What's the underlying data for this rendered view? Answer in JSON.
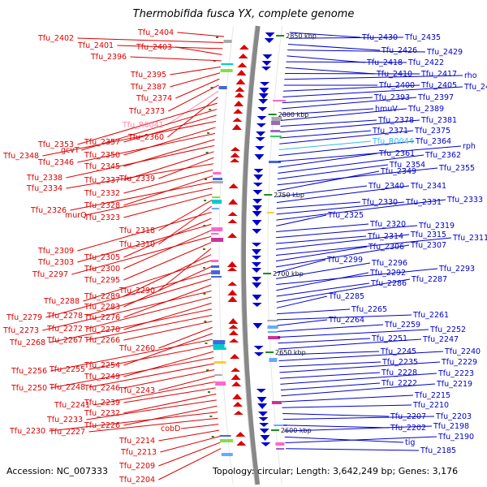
{
  "title": "Thermobifida fusca YX, complete genome",
  "accession": "Accession: NC_007333",
  "summary": "Topology: circular; Length: 3,642,249 bp; Genes: 3,176",
  "colors": {
    "left_genes": "#dd0000",
    "right_genes": "#0000cc",
    "rna_left": "#ff88aa",
    "rna_right": "#33bbee",
    "backbone": "#888888",
    "tick_marks": "#228822"
  },
  "ticks": [
    {
      "label": "2850 kbp"
    },
    {
      "label": "2800 kbp"
    },
    {
      "label": "2750 kbp"
    },
    {
      "label": "2700 kbp"
    },
    {
      "label": "2650 kbp"
    },
    {
      "label": "2600 kbp"
    }
  ],
  "left_labels": [
    {
      "text": "Tfu_2404",
      "type": "gene"
    },
    {
      "text": "Tfu_2402",
      "type": "gene"
    },
    {
      "text": "Tfu_2401",
      "type": "gene"
    },
    {
      "text": "Tfu_2403",
      "type": "gene"
    },
    {
      "text": "Tfu_2396",
      "type": "gene"
    },
    {
      "text": "Tfu_2395",
      "type": "gene"
    },
    {
      "text": "Tfu_2387",
      "type": "gene"
    },
    {
      "text": "Tfu_2374",
      "type": "gene"
    },
    {
      "text": "Tfu_2373",
      "type": "gene"
    },
    {
      "text": "Tfu_R0041",
      "type": "rna"
    },
    {
      "text": "Tfu_2360",
      "type": "gene"
    },
    {
      "text": "Tfu_2353",
      "type": "gene"
    },
    {
      "text": "gcvT",
      "type": "gene"
    },
    {
      "text": "Tfu_2357",
      "type": "gene"
    },
    {
      "text": "Tfu_2348",
      "type": "gene"
    },
    {
      "text": "Tfu_2350",
      "type": "gene"
    },
    {
      "text": "Tfu_2346",
      "type": "gene"
    },
    {
      "text": "Tfu_2345",
      "type": "gene"
    },
    {
      "text": "Tfu_2338",
      "type": "gene"
    },
    {
      "text": "Tfu_2337",
      "type": "gene"
    },
    {
      "text": "Tfu_2339",
      "type": "gene"
    },
    {
      "text": "Tfu_2334",
      "type": "gene"
    },
    {
      "text": "Tfu_2332",
      "type": "gene"
    },
    {
      "text": "Tfu_2328",
      "type": "gene"
    },
    {
      "text": "Tfu_2326",
      "type": "gene"
    },
    {
      "text": "murQ",
      "type": "gene"
    },
    {
      "text": "Tfu_2323",
      "type": "gene"
    },
    {
      "text": "Tfu_2318",
      "type": "gene"
    },
    {
      "text": "Tfu_2310",
      "type": "gene"
    },
    {
      "text": "Tfu_2309",
      "type": "gene"
    },
    {
      "text": "Tfu_2305",
      "type": "gene"
    },
    {
      "text": "Tfu_2303",
      "type": "gene"
    },
    {
      "text": "Tfu_2300",
      "type": "gene"
    },
    {
      "text": "Tfu_2297",
      "type": "gene"
    },
    {
      "text": "Tfu_2295",
      "type": "gene"
    },
    {
      "text": "Tfu_2290",
      "type": "gene"
    },
    {
      "text": "Tfu_2289",
      "type": "gene"
    },
    {
      "text": "Tfu_2288",
      "type": "gene"
    },
    {
      "text": "Tfu_2283",
      "type": "gene"
    },
    {
      "text": "Tfu_2279",
      "type": "gene"
    },
    {
      "text": "Tfu_2278",
      "type": "gene"
    },
    {
      "text": "Tfu_2276",
      "type": "gene"
    },
    {
      "text": "Tfu_2273",
      "type": "gene"
    },
    {
      "text": "Tfu_2272",
      "type": "gene"
    },
    {
      "text": "Tfu_2270",
      "type": "gene"
    },
    {
      "text": "Tfu_2268",
      "type": "gene"
    },
    {
      "text": "Tfu_2267",
      "type": "gene"
    },
    {
      "text": "Tfu_2266",
      "type": "gene"
    },
    {
      "text": "Tfu_2260",
      "type": "gene"
    },
    {
      "text": "Tfu_2254",
      "type": "gene"
    },
    {
      "text": "Tfu_2256",
      "type": "gene"
    },
    {
      "text": "Tfu_2255",
      "type": "gene"
    },
    {
      "text": "Tfu_2249",
      "type": "gene"
    },
    {
      "text": "Tfu_2250",
      "type": "gene"
    },
    {
      "text": "Tfu_2248",
      "type": "gene"
    },
    {
      "text": "Tfu_2246",
      "type": "gene"
    },
    {
      "text": "Tfu_2243",
      "type": "gene"
    },
    {
      "text": "Tfu_2241",
      "type": "gene"
    },
    {
      "text": "Tfu_2239",
      "type": "gene"
    },
    {
      "text": "Tfu_2232",
      "type": "gene"
    },
    {
      "text": "Tfu_2233",
      "type": "gene"
    },
    {
      "text": "Tfu_2226",
      "type": "gene"
    },
    {
      "text": "Tfu_2230",
      "type": "gene"
    },
    {
      "text": "Tfu_2227",
      "type": "gene"
    },
    {
      "text": "cobD",
      "type": "gene"
    },
    {
      "text": "Tfu_2214",
      "type": "gene"
    },
    {
      "text": "Tfu_2213",
      "type": "gene"
    },
    {
      "text": "Tfu_2209",
      "type": "gene"
    },
    {
      "text": "Tfu_2204",
      "type": "gene"
    }
  ],
  "right_labels": [
    {
      "text": "Tfu_2430",
      "type": "gene"
    },
    {
      "text": "Tfu_2435",
      "type": "gene"
    },
    {
      "text": "Tfu_2426",
      "type": "gene"
    },
    {
      "text": "Tfu_2429",
      "type": "gene"
    },
    {
      "text": "Tfu_2418",
      "type": "gene"
    },
    {
      "text": "Tfu_2422",
      "type": "gene"
    },
    {
      "text": "Tfu_2410",
      "type": "gene"
    },
    {
      "text": "Tfu_2417",
      "type": "gene"
    },
    {
      "text": "rho",
      "type": "gene"
    },
    {
      "text": "Tfu_2400",
      "type": "gene"
    },
    {
      "text": "Tfu_2405",
      "type": "gene"
    },
    {
      "text": "Tfu_2409",
      "type": "gene"
    },
    {
      "text": "Tfu_2393",
      "type": "gene"
    },
    {
      "text": "Tfu_2397",
      "type": "gene"
    },
    {
      "text": "hmuV",
      "type": "gene"
    },
    {
      "text": "Tfu_2389",
      "type": "gene"
    },
    {
      "text": "Tfu_2378",
      "type": "gene"
    },
    {
      "text": "Tfu_2381",
      "type": "gene"
    },
    {
      "text": "Tfu_2371",
      "type": "gene"
    },
    {
      "text": "Tfu_2375",
      "type": "gene"
    },
    {
      "text": "Tfu_R0044",
      "type": "rna"
    },
    {
      "text": "Tfu_2364",
      "type": "gene"
    },
    {
      "text": "rph",
      "type": "gene"
    },
    {
      "text": "Tfu_2361",
      "type": "gene"
    },
    {
      "text": "Tfu_2362",
      "type": "gene"
    },
    {
      "text": "Tfu_2354",
      "type": "gene"
    },
    {
      "text": "Tfu_2355",
      "type": "gene"
    },
    {
      "text": "Tfu_2349",
      "type": "gene"
    },
    {
      "text": "Tfu_2340",
      "type": "gene"
    },
    {
      "text": "Tfu_2341",
      "type": "gene"
    },
    {
      "text": "Tfu_2330",
      "type": "gene"
    },
    {
      "text": "Tfu_2331",
      "type": "gene"
    },
    {
      "text": "Tfu_2333",
      "type": "gene"
    },
    {
      "text": "Tfu_2325",
      "type": "gene"
    },
    {
      "text": "Tfu_2320",
      "type": "gene"
    },
    {
      "text": "Tfu_2319",
      "type": "gene"
    },
    {
      "text": "Tfu_2314",
      "type": "gene"
    },
    {
      "text": "Tfu_2315",
      "type": "gene"
    },
    {
      "text": "Tfu_2311",
      "type": "gene"
    },
    {
      "text": "Tfu_2306",
      "type": "gene"
    },
    {
      "text": "Tfu_2307",
      "type": "gene"
    },
    {
      "text": "Tfu_2299",
      "type": "gene"
    },
    {
      "text": "Tfu_2296",
      "type": "gene"
    },
    {
      "text": "Tfu_2293",
      "type": "gene"
    },
    {
      "text": "Tfu_2292",
      "type": "gene"
    },
    {
      "text": "Tfu_2286",
      "type": "gene"
    },
    {
      "text": "Tfu_2287",
      "type": "gene"
    },
    {
      "text": "Tfu_2285",
      "type": "gene"
    },
    {
      "text": "Tfu_2265",
      "type": "gene"
    },
    {
      "text": "Tfu_2261",
      "type": "gene"
    },
    {
      "text": "Tfu_2264",
      "type": "gene"
    },
    {
      "text": "Tfu_2259",
      "type": "gene"
    },
    {
      "text": "Tfu_2252",
      "type": "gene"
    },
    {
      "text": "Tfu_2251",
      "type": "gene"
    },
    {
      "text": "Tfu_2247",
      "type": "gene"
    },
    {
      "text": "Tfu_2245",
      "type": "gene"
    },
    {
      "text": "Tfu_2240",
      "type": "gene"
    },
    {
      "text": "Tfu_2235",
      "type": "gene"
    },
    {
      "text": "Tfu_2229",
      "type": "gene"
    },
    {
      "text": "Tfu_2228",
      "type": "gene"
    },
    {
      "text": "Tfu_2223",
      "type": "gene"
    },
    {
      "text": "Tfu_2222",
      "type": "gene"
    },
    {
      "text": "Tfu_2219",
      "type": "gene"
    },
    {
      "text": "Tfu_2215",
      "type": "gene"
    },
    {
      "text": "Tfu_2210",
      "type": "gene"
    },
    {
      "text": "Tfu_2207",
      "type": "gene"
    },
    {
      "text": "Tfu_2203",
      "type": "gene"
    },
    {
      "text": "Tfu_2202",
      "type": "gene"
    },
    {
      "text": "Tfu_2198",
      "type": "gene"
    },
    {
      "text": "tig",
      "type": "gene"
    },
    {
      "text": "Tfu_2190",
      "type": "gene"
    },
    {
      "text": "Tfu_2185",
      "type": "gene"
    }
  ]
}
